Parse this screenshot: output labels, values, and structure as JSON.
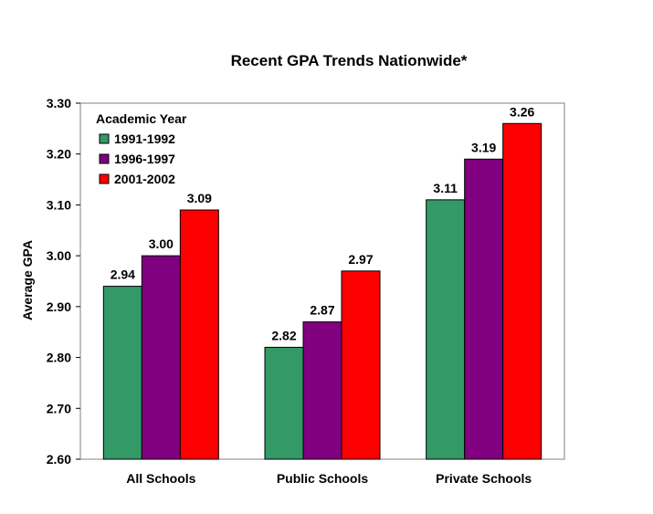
{
  "chart_data": {
    "type": "bar",
    "title": "Recent GPA Trends Nationwide*",
    "xlabel": "",
    "ylabel": "Average GPA",
    "ylim": [
      2.6,
      3.3
    ],
    "yticks": [
      "2.60",
      "2.70",
      "2.80",
      "2.90",
      "3.00",
      "3.10",
      "3.20",
      "3.30"
    ],
    "grid": false,
    "legend_position": "top-left",
    "legend_title": "Academic Year",
    "categories": [
      "All Schools",
      "Public Schools",
      "Private Schools"
    ],
    "series": [
      {
        "name": "1991-1992",
        "color": "#339966",
        "values": [
          2.94,
          2.82,
          3.11
        ],
        "labels": [
          "2.94",
          "2.82",
          "3.11"
        ]
      },
      {
        "name": "1996-1997",
        "color": "#800080",
        "values": [
          3.0,
          2.87,
          3.19
        ],
        "labels": [
          "3.00",
          "2.87",
          "3.19"
        ]
      },
      {
        "name": "2001-2002",
        "color": "#ff0000",
        "values": [
          3.09,
          2.97,
          3.26
        ],
        "labels": [
          "3.09",
          "2.97",
          "3.26"
        ]
      }
    ]
  }
}
